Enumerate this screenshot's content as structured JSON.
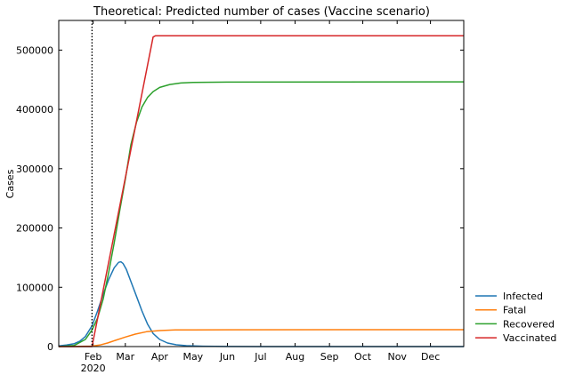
{
  "chart_data": {
    "type": "line",
    "title": "Theoretical: Predicted number of cases (Vaccine scenario)",
    "xlabel": "",
    "ylabel": "Cases",
    "ylim": [
      0,
      550000
    ],
    "yticks": [
      0,
      100000,
      200000,
      300000,
      400000,
      500000
    ],
    "ytick_labels": [
      "0",
      "100000",
      "200000",
      "300000",
      "400000",
      "500000"
    ],
    "xlim": [
      "2020-01-01",
      "2020-12-31"
    ],
    "xticks": [
      {
        "date": "2020-02-01",
        "label": "Feb",
        "sublabel": "2020"
      },
      {
        "date": "2020-03-01",
        "label": "Mar",
        "sublabel": ""
      },
      {
        "date": "2020-04-01",
        "label": "Apr",
        "sublabel": ""
      },
      {
        "date": "2020-05-01",
        "label": "May",
        "sublabel": ""
      },
      {
        "date": "2020-06-01",
        "label": "Jun",
        "sublabel": ""
      },
      {
        "date": "2020-07-01",
        "label": "Jul",
        "sublabel": ""
      },
      {
        "date": "2020-08-01",
        "label": "Aug",
        "sublabel": ""
      },
      {
        "date": "2020-09-01",
        "label": "Sep",
        "sublabel": ""
      },
      {
        "date": "2020-10-01",
        "label": "Oct",
        "sublabel": ""
      },
      {
        "date": "2020-11-01",
        "label": "Nov",
        "sublabel": ""
      },
      {
        "date": "2020-12-01",
        "label": "Dec",
        "sublabel": ""
      }
    ],
    "vline": {
      "date": "2020-01-31",
      "style": "dotted",
      "color": "#000000"
    },
    "grid": false,
    "legend": "outside-right-bottom",
    "series": [
      {
        "name": "Infected",
        "color": "#1f77b4",
        "points": [
          [
            "2020-01-01",
            1000
          ],
          [
            "2020-01-08",
            2500
          ],
          [
            "2020-01-15",
            5000
          ],
          [
            "2020-01-20",
            9000
          ],
          [
            "2020-01-25",
            17000
          ],
          [
            "2020-01-31",
            35000
          ],
          [
            "2020-02-05",
            60000
          ],
          [
            "2020-02-10",
            88000
          ],
          [
            "2020-02-15",
            113000
          ],
          [
            "2020-02-20",
            133000
          ],
          [
            "2020-02-24",
            142000
          ],
          [
            "2020-02-26",
            143000
          ],
          [
            "2020-02-28",
            140000
          ],
          [
            "2020-03-02",
            130000
          ],
          [
            "2020-03-06",
            110000
          ],
          [
            "2020-03-11",
            85000
          ],
          [
            "2020-03-16",
            60000
          ],
          [
            "2020-03-21",
            38000
          ],
          [
            "2020-03-26",
            22000
          ],
          [
            "2020-04-01",
            12000
          ],
          [
            "2020-04-08",
            6000
          ],
          [
            "2020-04-16",
            3000
          ],
          [
            "2020-04-25",
            1500
          ],
          [
            "2020-05-10",
            600
          ],
          [
            "2020-06-01",
            200
          ],
          [
            "2020-07-01",
            50
          ],
          [
            "2020-12-31",
            0
          ]
        ]
      },
      {
        "name": "Fatal",
        "color": "#ff7f0e",
        "points": [
          [
            "2020-01-01",
            0
          ],
          [
            "2020-01-15",
            100
          ],
          [
            "2020-01-31",
            800
          ],
          [
            "2020-02-07",
            2500
          ],
          [
            "2020-02-14",
            6000
          ],
          [
            "2020-02-21",
            10500
          ],
          [
            "2020-03-01",
            16000
          ],
          [
            "2020-03-10",
            21000
          ],
          [
            "2020-03-20",
            25000
          ],
          [
            "2020-04-01",
            27000
          ],
          [
            "2020-04-15",
            28000
          ],
          [
            "2020-05-01",
            28200
          ],
          [
            "2020-06-01",
            28300
          ],
          [
            "2020-12-31",
            28400
          ]
        ]
      },
      {
        "name": "Recovered",
        "color": "#2ca02c",
        "points": [
          [
            "2020-01-01",
            0
          ],
          [
            "2020-01-15",
            2000
          ],
          [
            "2020-01-25",
            12000
          ],
          [
            "2020-01-31",
            28000
          ],
          [
            "2020-02-05",
            48000
          ],
          [
            "2020-02-10",
            80000
          ],
          [
            "2020-02-15",
            125000
          ],
          [
            "2020-02-20",
            175000
          ],
          [
            "2020-02-25",
            230000
          ],
          [
            "2020-03-01",
            282000
          ],
          [
            "2020-03-06",
            340000
          ],
          [
            "2020-03-11",
            378000
          ],
          [
            "2020-03-16",
            404000
          ],
          [
            "2020-03-21",
            420000
          ],
          [
            "2020-03-26",
            430000
          ],
          [
            "2020-04-01",
            437000
          ],
          [
            "2020-04-10",
            442000
          ],
          [
            "2020-04-20",
            444500
          ],
          [
            "2020-05-01",
            445500
          ],
          [
            "2020-06-01",
            446000
          ],
          [
            "2020-12-31",
            446500
          ]
        ]
      },
      {
        "name": "Vaccinated",
        "color": "#d62728",
        "points": [
          [
            "2020-01-01",
            0
          ],
          [
            "2020-01-31",
            0
          ],
          [
            "2020-03-26",
            522000
          ],
          [
            "2020-03-28",
            524000
          ],
          [
            "2020-12-31",
            524000
          ]
        ]
      }
    ]
  }
}
